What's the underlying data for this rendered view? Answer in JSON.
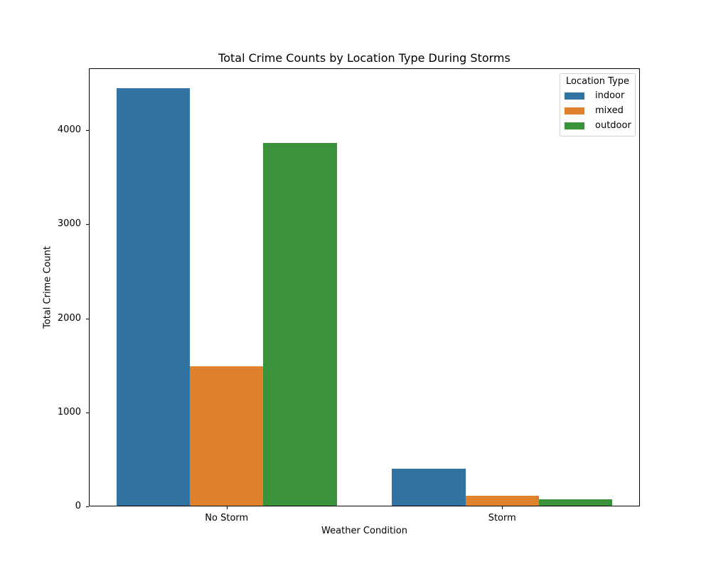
{
  "chart_data": {
    "type": "bar",
    "title": "Total Crime Counts by Location Type During Storms",
    "xlabel": "Weather Condition",
    "ylabel": "Total Crime Count",
    "categories": [
      "No Storm",
      "Storm"
    ],
    "series": [
      {
        "name": "indoor",
        "color": "#3274a1",
        "values": [
          4440,
          393
        ]
      },
      {
        "name": "mixed",
        "color": "#e1812c",
        "values": [
          1482,
          106
        ]
      },
      {
        "name": "outdoor",
        "color": "#3a923a",
        "values": [
          3856,
          68
        ]
      }
    ],
    "ylim": [
      0,
      4657
    ],
    "yticks": [
      0,
      1000,
      2000,
      3000,
      4000
    ],
    "grid": false,
    "legend": {
      "title": "Location Type",
      "position": "upper right"
    }
  },
  "labels": {
    "title": "Total Crime Counts by Location Type During Storms",
    "xlabel": "Weather Condition",
    "ylabel": "Total Crime Count",
    "legend_title": "Location Type",
    "legend_items": [
      "indoor",
      "mixed",
      "outdoor"
    ],
    "xticks": [
      "No Storm",
      "Storm"
    ],
    "yticks": [
      "0",
      "1000",
      "2000",
      "3000",
      "4000"
    ]
  }
}
